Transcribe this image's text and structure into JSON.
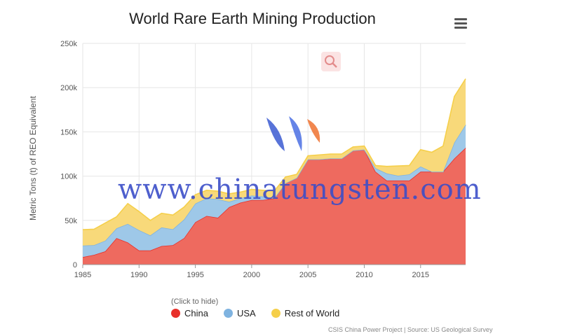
{
  "chart_data": {
    "type": "area",
    "stacked": true,
    "title": "World Rare Earth Mining Production",
    "ylabel": "Metric Tons (t) of REO Equivalent",
    "xlabel": "",
    "ylim": [
      0,
      250000
    ],
    "xlim": [
      1985,
      2019
    ],
    "y_ticks": [
      "0",
      "50k",
      "100k",
      "150k",
      "200k",
      "250k"
    ],
    "y_tick_values": [
      0,
      50000,
      100000,
      150000,
      200000,
      250000
    ],
    "x_ticks": [
      "1985",
      "1990",
      "1995",
      "2000",
      "2005",
      "2010",
      "2015"
    ],
    "x_tick_values": [
      1985,
      1990,
      1995,
      2000,
      2005,
      2010,
      2015
    ],
    "grid": "on",
    "legend_hint": "(Click to hide)",
    "legend_placement": "bottom",
    "credits": "CSIS China Power Project | Source: US Geological Survey",
    "x": [
      1985,
      1986,
      1987,
      1988,
      1989,
      1990,
      1991,
      1992,
      1993,
      1994,
      1995,
      1996,
      1997,
      1998,
      1999,
      2000,
      2001,
      2002,
      2003,
      2004,
      2005,
      2006,
      2007,
      2008,
      2009,
      2010,
      2011,
      2012,
      2013,
      2014,
      2015,
      2016,
      2017,
      2018,
      2019
    ],
    "series": [
      {
        "name": "China",
        "color": "#e8302a",
        "values": [
          8500,
          11000,
          15000,
          30000,
          25000,
          16000,
          16000,
          21000,
          22000,
          30000,
          48000,
          55000,
          53000,
          65000,
          70000,
          73000,
          73000,
          75000,
          92000,
          98000,
          119000,
          119000,
          120000,
          120000,
          129000,
          130000,
          105000,
          95000,
          95000,
          95000,
          105000,
          105000,
          105000,
          120000,
          132000
        ]
      },
      {
        "name": "USA",
        "color": "#7fb3e0",
        "values": [
          13000,
          11000,
          12000,
          11000,
          21000,
          23000,
          17000,
          21000,
          18000,
          21000,
          21000,
          20000,
          21000,
          6000,
          5000,
          5000,
          4000,
          0,
          0,
          0,
          0,
          0,
          0,
          0,
          0,
          0,
          4000,
          8000,
          5500,
          7000,
          5900,
          0,
          0,
          18000,
          26000
        ]
      },
      {
        "name": "Rest of World",
        "color": "#f5cf4a",
        "values": [
          18000,
          18000,
          20000,
          13000,
          23000,
          21000,
          17000,
          16000,
          16000,
          14000,
          10000,
          9000,
          9000,
          9000,
          7000,
          7000,
          7000,
          8000,
          7000,
          4000,
          4000,
          5000,
          5000,
          5000,
          4000,
          4000,
          3000,
          8000,
          11000,
          10000,
          19000,
          22000,
          29000,
          52000,
          52000
        ]
      }
    ]
  }
}
